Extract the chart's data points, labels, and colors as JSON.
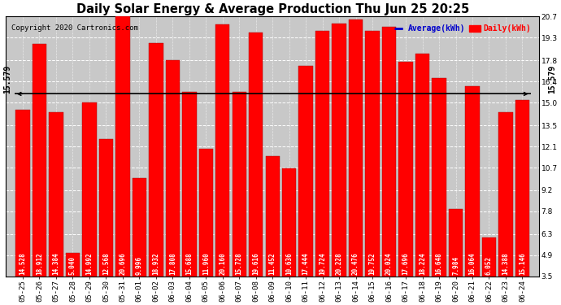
{
  "title": "Daily Solar Energy & Average Production Thu Jun 25 20:25",
  "copyright": "Copyright 2020 Cartronics.com",
  "average_label": "Average(kWh)",
  "daily_label": "Daily(kWh)",
  "average_value": 15.579,
  "categories": [
    "05-25",
    "05-26",
    "05-27",
    "05-28",
    "05-29",
    "05-30",
    "05-31",
    "06-01",
    "06-02",
    "06-03",
    "06-04",
    "06-05",
    "06-06",
    "06-07",
    "06-08",
    "06-09",
    "06-10",
    "06-11",
    "06-12",
    "06-13",
    "06-14",
    "06-15",
    "06-16",
    "06-17",
    "06-18",
    "06-19",
    "06-20",
    "06-21",
    "06-22",
    "06-23",
    "06-24"
  ],
  "values": [
    14.528,
    18.912,
    14.384,
    5.04,
    14.992,
    12.568,
    20.696,
    9.996,
    18.932,
    17.808,
    15.688,
    11.96,
    20.16,
    15.728,
    19.616,
    11.452,
    10.636,
    17.444,
    19.724,
    20.228,
    20.476,
    19.752,
    20.024,
    17.696,
    18.224,
    16.648,
    7.984,
    16.064,
    6.052,
    14.388,
    15.146
  ],
  "bar_color": "#ff0000",
  "bar_edge_color": "#990000",
  "average_line_color": "#000000",
  "legend_avg_color": "#0000cc",
  "legend_daily_color": "#ff0000",
  "chart_bg_color": "#c8c8c8",
  "fig_bg_color": "#ffffff",
  "grid_color": "#ffffff",
  "value_text_color": "#ffffff",
  "avg_text_color": "#000000",
  "copyright_color": "#000000",
  "title_color": "#000000",
  "ylim_min": 3.5,
  "ylim_max": 20.7,
  "yticks": [
    3.5,
    4.9,
    6.3,
    7.8,
    9.2,
    10.7,
    12.1,
    13.5,
    15.0,
    16.4,
    17.8,
    19.3,
    20.7
  ],
  "title_fontsize": 10.5,
  "tick_fontsize": 6.5,
  "value_fontsize": 5.5,
  "avg_text_fontsize": 7,
  "copyright_fontsize": 6.5,
  "legend_fontsize": 7
}
